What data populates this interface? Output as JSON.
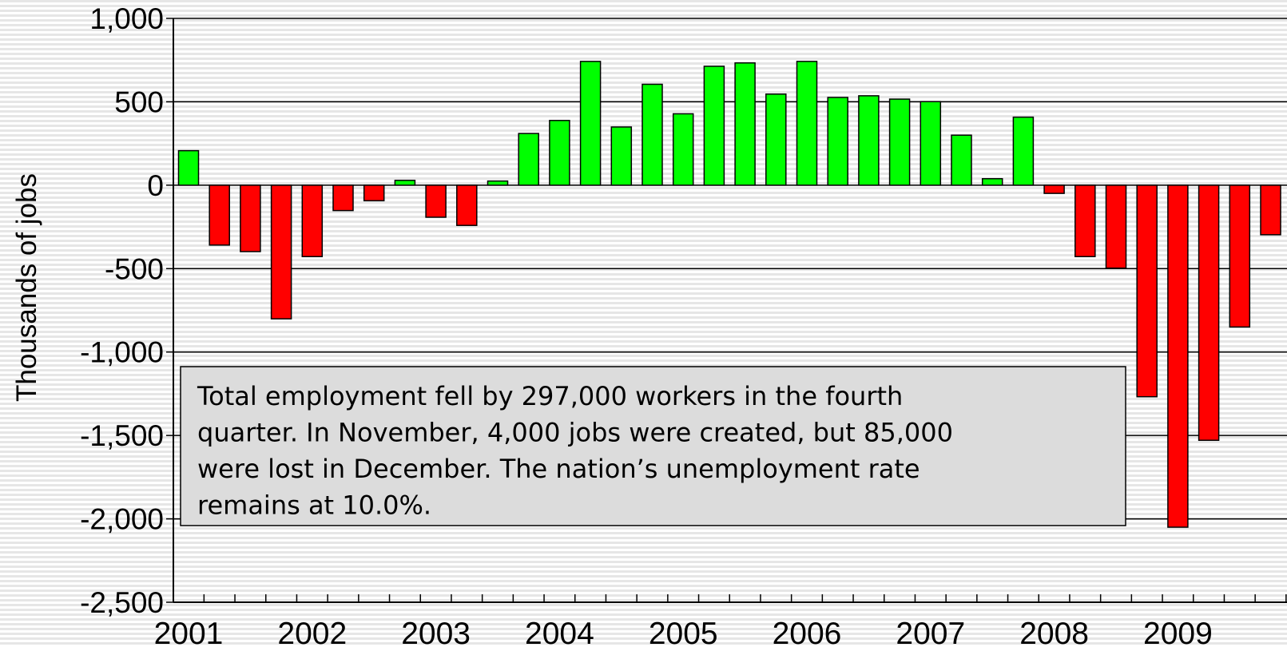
{
  "chart_data": {
    "type": "bar",
    "y_label": "Thousands of jobs",
    "categories": [
      "2001",
      null,
      null,
      null,
      "2002",
      null,
      null,
      null,
      "2003",
      null,
      null,
      null,
      "2004",
      null,
      null,
      null,
      "2005",
      null,
      null,
      null,
      "2006",
      null,
      null,
      null,
      "2007",
      null,
      null,
      null,
      "2008",
      null,
      null,
      null,
      "2009",
      null,
      null,
      null
    ],
    "values": [
      207,
      -359,
      -398,
      -801,
      -428,
      -152,
      -93,
      29,
      -192,
      -241,
      25,
      310,
      388,
      742,
      349,
      605,
      428,
      713,
      733,
      546,
      742,
      526,
      536,
      516,
      501,
      300,
      39,
      408,
      -49,
      -428,
      -497,
      -1268,
      -2050,
      -1529,
      -850,
      -297
    ],
    "positive_color": "#00ff00",
    "negative_color": "#ff0000",
    "ylim": [
      -2500,
      1000
    ],
    "yticks": [
      {
        "value": -2500,
        "label": "-2,500"
      },
      {
        "value": -2000,
        "label": "-2,000"
      },
      {
        "value": -1500,
        "label": "-1,500"
      },
      {
        "value": -1000,
        "label": "-1,000"
      },
      -500,
      0,
      500,
      {
        "value": 1000,
        "label": "1,000"
      }
    ],
    "grid": true,
    "annotation": [
      "Total employment fell by 297,000 workers in the fourth",
      "quarter. In November, 4,000 jobs were created, but 85,000",
      "were lost in December. The nation’s unemployment rate",
      "remains at 10.0%."
    ]
  }
}
